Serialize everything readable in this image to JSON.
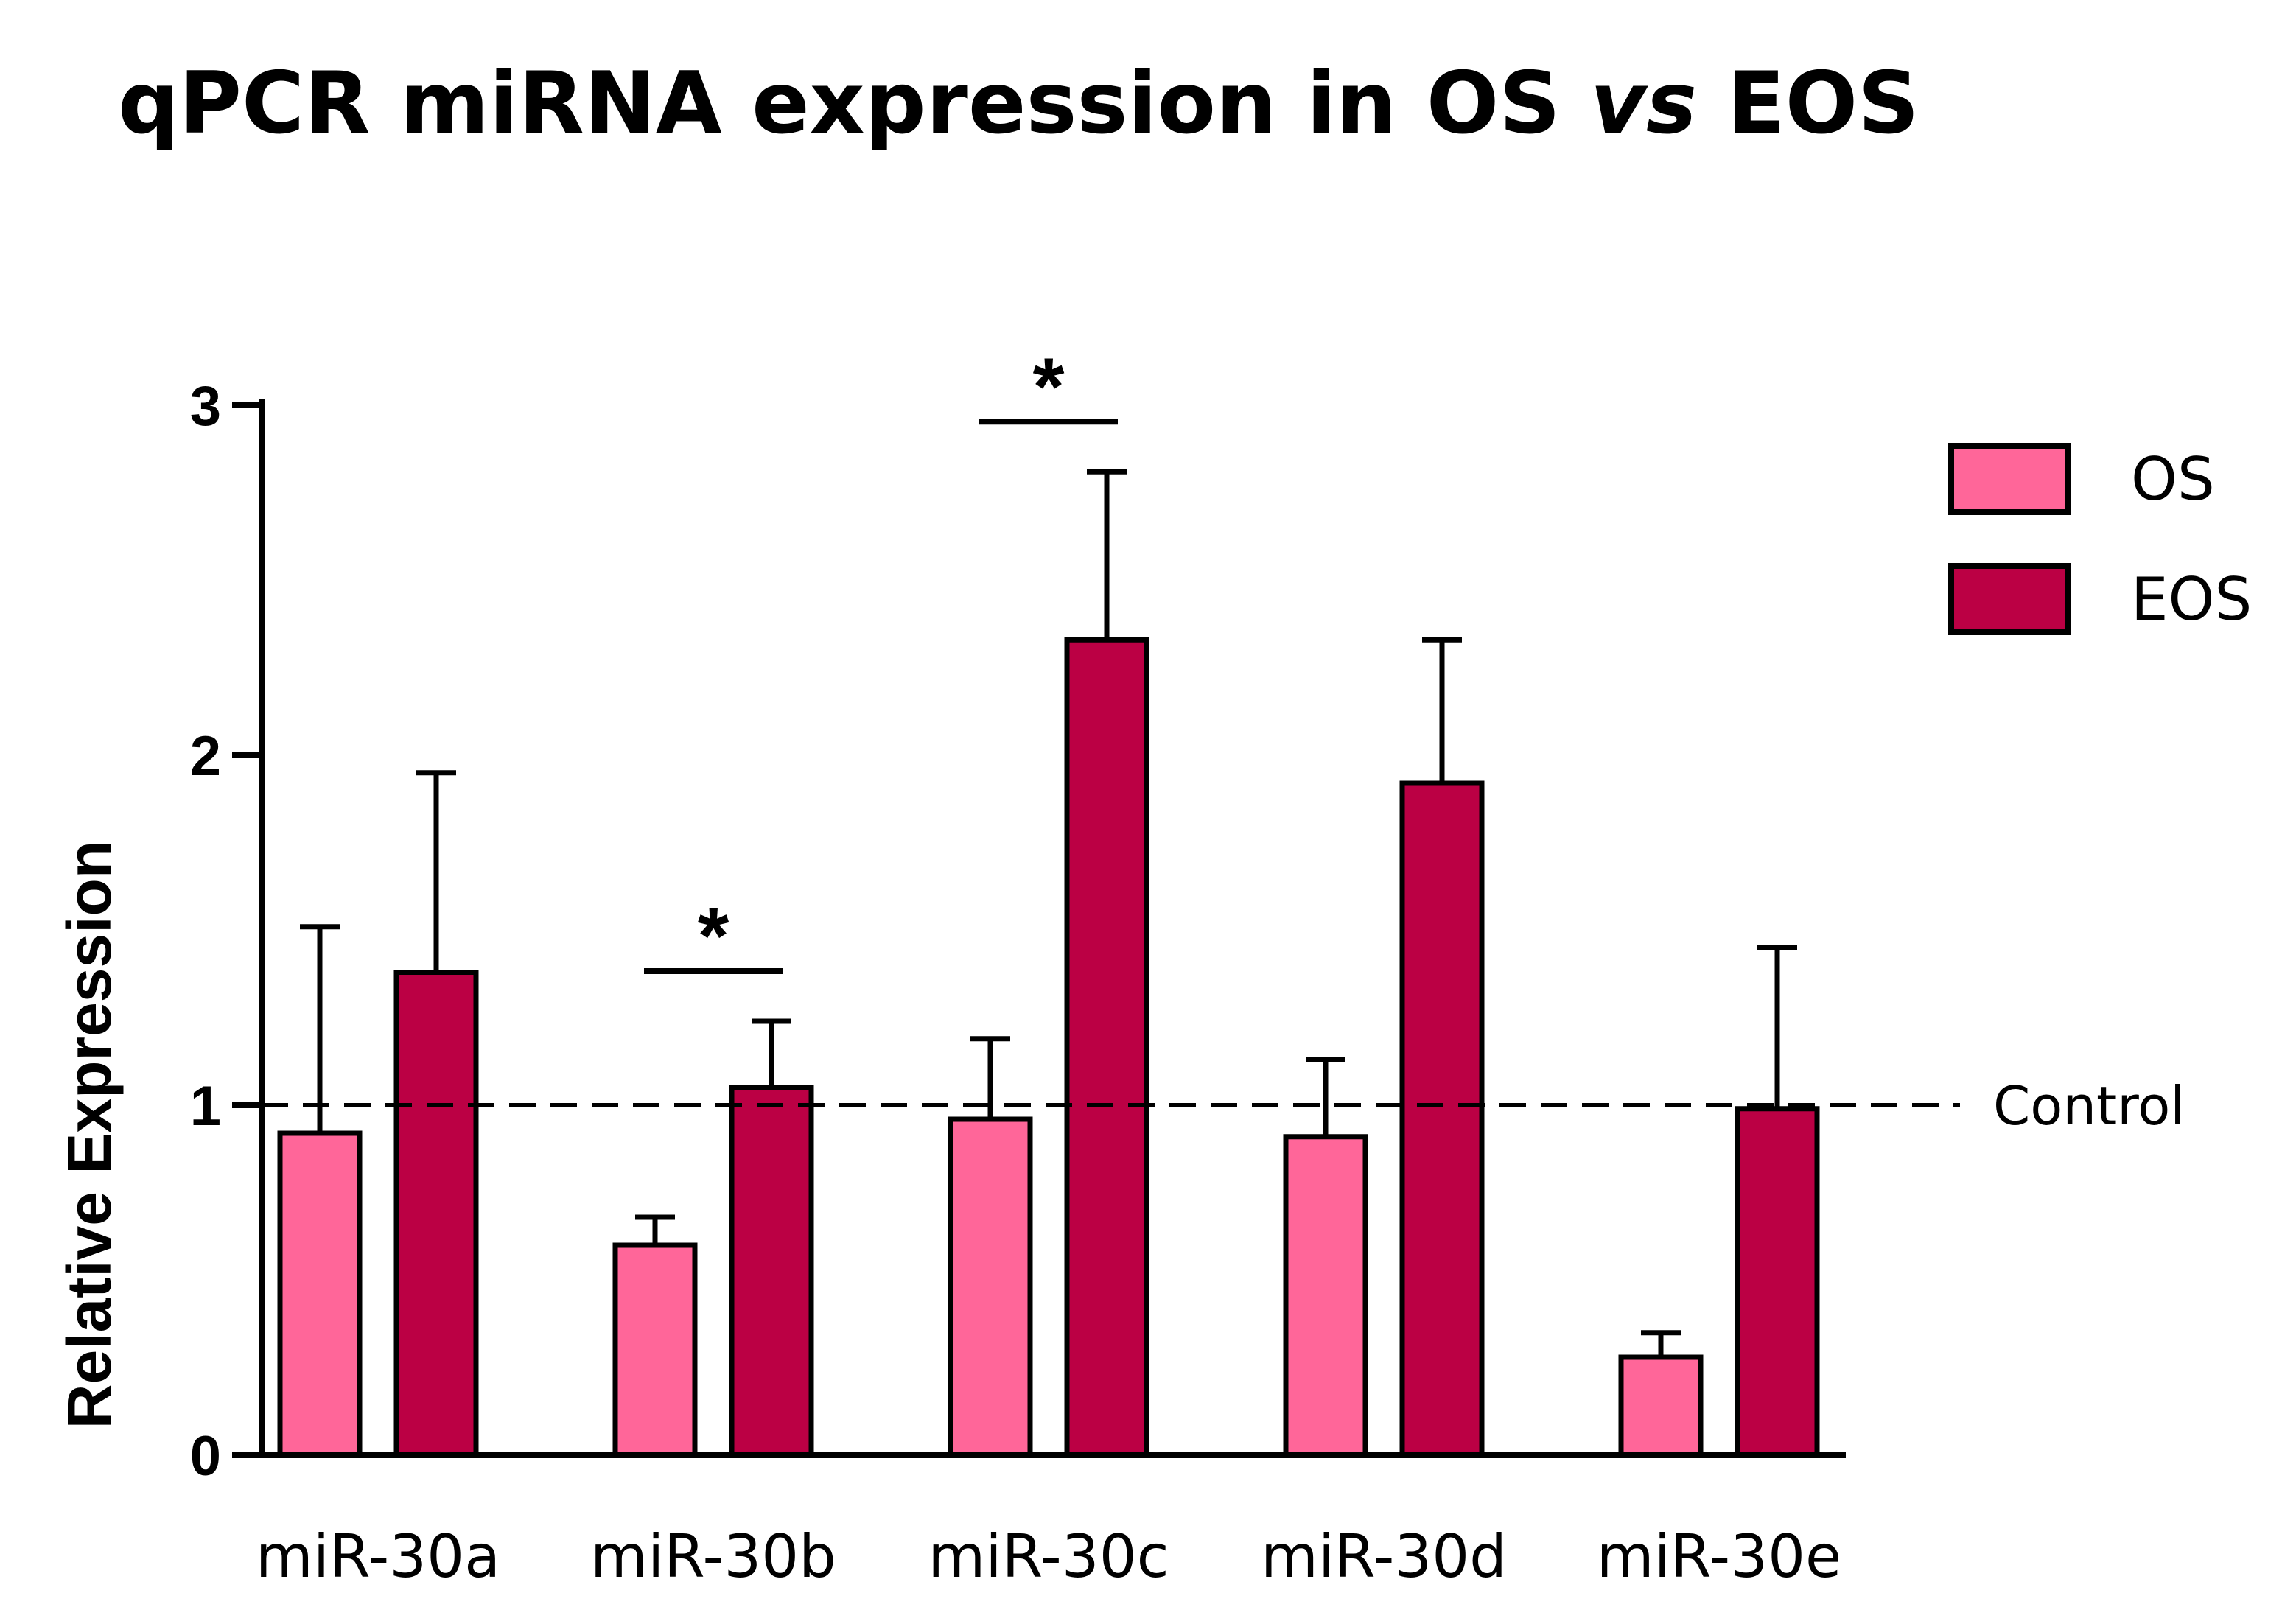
{
  "chart_data": {
    "type": "bar",
    "title_main": "qPCR miRNA expression in OS ",
    "title_italic": "vs",
    "title_end": " EOS",
    "xlabel": "",
    "ylabel": "Relative Expression",
    "ylim": [
      0,
      3
    ],
    "yticks": [
      "0",
      "1",
      "2",
      "3"
    ],
    "categories": [
      "miR-30a",
      "miR-30b",
      "miR-30c",
      "miR-30d",
      "miR-30e"
    ],
    "series": [
      {
        "name": "OS",
        "color": "#ff6699",
        "values": [
          0.92,
          0.6,
          0.96,
          0.91,
          0.28
        ],
        "errors": [
          0.59,
          0.08,
          0.23,
          0.22,
          0.07
        ]
      },
      {
        "name": "EOS",
        "color": "#bb0044",
        "values": [
          1.38,
          1.05,
          2.33,
          1.92,
          0.99
        ],
        "errors": [
          0.57,
          0.19,
          0.48,
          0.41,
          0.46
        ]
      }
    ],
    "reference_line": {
      "value": 1,
      "label": "Control",
      "style": "dashed"
    },
    "significance": [
      {
        "category": "miR-30b",
        "label": "*"
      },
      {
        "category": "miR-30c",
        "label": "*"
      }
    ],
    "legend_position": "top-right",
    "grid": false
  }
}
